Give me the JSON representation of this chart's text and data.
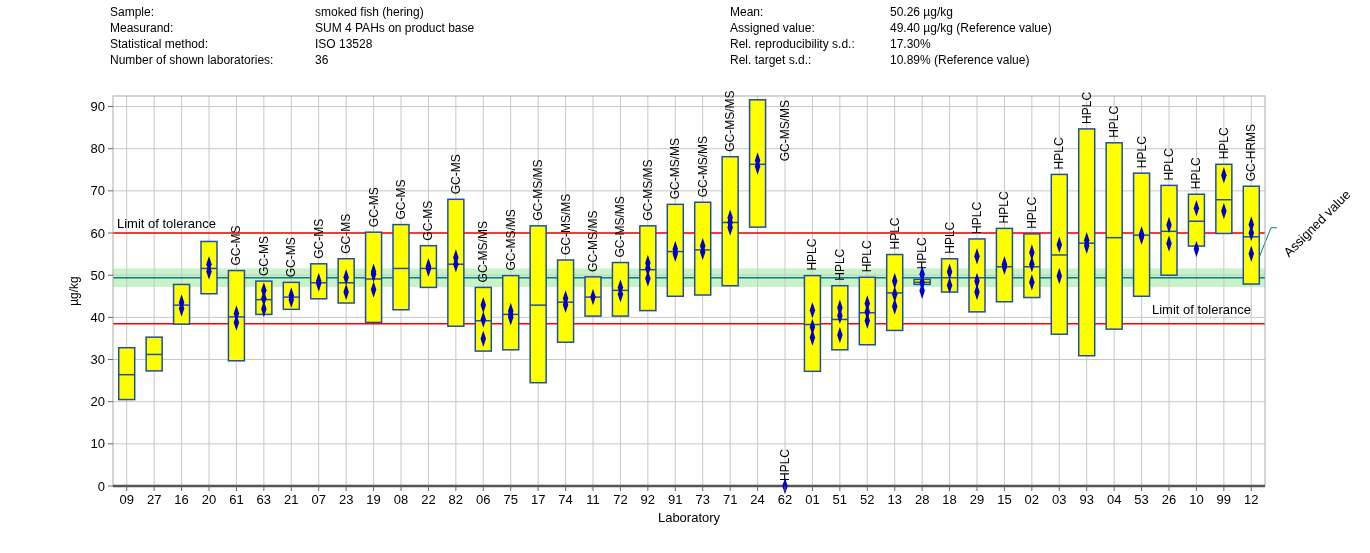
{
  "chart_data": {
    "type": "box",
    "xlabel": "Laboratory",
    "ylabel": "µg/kg",
    "categories": [
      "09",
      "27",
      "16",
      "20",
      "61",
      "63",
      "21",
      "07",
      "23",
      "19",
      "08",
      "22",
      "82",
      "06",
      "75",
      "17",
      "74",
      "11",
      "72",
      "92",
      "91",
      "73",
      "71",
      "24",
      "62",
      "01",
      "51",
      "52",
      "13",
      "28",
      "18",
      "29",
      "15",
      "02",
      "03",
      "93",
      "04",
      "53",
      "26",
      "10",
      "99",
      "12"
    ],
    "ylim": [
      0,
      92.5
    ],
    "yticks": [
      0,
      10,
      20,
      30,
      40,
      50,
      60,
      70,
      80,
      90
    ],
    "grid": true,
    "series": [
      {
        "type": "box",
        "color": "#ffff00",
        "boxes": [
          {
            "low": 20.5,
            "q1": 20.5,
            "median": 26.4,
            "q3": 32.8,
            "high": 32.8
          },
          {
            "low": 27.3,
            "q1": 27.3,
            "median": 31.2,
            "q3": 35.3,
            "high": 35.3
          },
          {
            "low": 38.4,
            "q1": 38.4,
            "median": 42.9,
            "q3": 47.8,
            "high": 47.8
          },
          {
            "low": 45.6,
            "q1": 45.6,
            "median": 51.6,
            "q3": 58.0,
            "high": 58.0
          },
          {
            "low": 29.7,
            "q1": 29.7,
            "median": 40.1,
            "q3": 51.1,
            "high": 51.1
          },
          {
            "low": 40.7,
            "q1": 40.7,
            "median": 44.2,
            "q3": 48.6,
            "high": 48.6
          },
          {
            "low": 41.9,
            "q1": 41.9,
            "median": 44.8,
            "q3": 48.3,
            "high": 48.3
          },
          {
            "low": 44.4,
            "q1": 44.4,
            "median": 48.2,
            "q3": 52.7,
            "high": 52.7
          },
          {
            "low": 43.4,
            "q1": 43.4,
            "median": 48.2,
            "q3": 53.9,
            "high": 53.9
          },
          {
            "low": 38.8,
            "q1": 38.8,
            "median": 49.1,
            "q3": 60.2,
            "high": 60.2
          },
          {
            "low": 41.8,
            "q1": 41.8,
            "median": 51.6,
            "q3": 62.0,
            "high": 62.0
          },
          {
            "low": 47.1,
            "q1": 47.1,
            "median": 51.6,
            "q3": 57.0,
            "high": 57.0
          },
          {
            "low": 37.9,
            "q1": 37.9,
            "median": 52.6,
            "q3": 68.0,
            "high": 68.0
          },
          {
            "low": 32.0,
            "q1": 32.0,
            "median": 39.2,
            "q3": 47.1,
            "high": 47.1
          },
          {
            "low": 32.3,
            "q1": 32.3,
            "median": 40.7,
            "q3": 49.9,
            "high": 49.9
          },
          {
            "low": 24.5,
            "q1": 24.5,
            "median": 42.9,
            "q3": 61.7,
            "high": 61.7
          },
          {
            "low": 34.1,
            "q1": 34.1,
            "median": 43.6,
            "q3": 53.6,
            "high": 53.6
          },
          {
            "low": 40.3,
            "q1": 40.3,
            "median": 44.8,
            "q3": 49.6,
            "high": 49.6
          },
          {
            "low": 40.3,
            "q1": 40.3,
            "median": 46.4,
            "q3": 53.0,
            "high": 53.0
          },
          {
            "low": 41.6,
            "q1": 41.6,
            "median": 51.3,
            "q3": 61.7,
            "high": 61.7
          },
          {
            "low": 45.0,
            "q1": 45.0,
            "median": 55.6,
            "q3": 66.8,
            "high": 66.8
          },
          {
            "low": 45.3,
            "q1": 45.3,
            "median": 56.0,
            "q3": 67.3,
            "high": 67.3
          },
          {
            "low": 47.5,
            "q1": 47.5,
            "median": 62.5,
            "q3": 78.1,
            "high": 78.1
          },
          {
            "low": 61.4,
            "q1": 61.4,
            "median": 76.3,
            "q3": 91.6,
            "high": 91.6
          },
          null,
          {
            "low": 27.2,
            "q1": 27.2,
            "median": 38.3,
            "q3": 49.9,
            "high": 49.9
          },
          {
            "low": 32.3,
            "q1": 32.3,
            "median": 39.5,
            "q3": 47.5,
            "high": 47.5
          },
          {
            "low": 33.5,
            "q1": 33.5,
            "median": 41.1,
            "q3": 49.5,
            "high": 49.5
          },
          {
            "low": 36.9,
            "q1": 36.9,
            "median": 45.8,
            "q3": 54.9,
            "high": 54.9
          },
          {
            "low": 47.8,
            "q1": 47.8,
            "median": 48.3,
            "q3": 49.0,
            "high": 49.0
          },
          {
            "low": 46.0,
            "q1": 46.0,
            "median": 49.4,
            "q3": 53.9,
            "high": 53.9
          },
          {
            "low": 41.3,
            "q1": 41.3,
            "median": 49.4,
            "q3": 58.6,
            "high": 58.6
          },
          {
            "low": 43.7,
            "q1": 43.7,
            "median": 52.0,
            "q3": 61.1,
            "high": 61.1
          },
          {
            "low": 44.7,
            "q1": 44.7,
            "median": 52.0,
            "q3": 59.8,
            "high": 59.8
          },
          {
            "low": 36.0,
            "q1": 36.0,
            "median": 54.8,
            "q3": 73.9,
            "high": 73.9
          },
          {
            "low": 30.9,
            "q1": 30.9,
            "median": 57.6,
            "q3": 84.7,
            "high": 84.7
          },
          {
            "low": 37.2,
            "q1": 37.2,
            "median": 58.9,
            "q3": 81.4,
            "high": 81.4
          },
          {
            "low": 45.0,
            "q1": 45.0,
            "median": 59.5,
            "q3": 74.2,
            "high": 74.2
          },
          {
            "low": 50.0,
            "q1": 50.0,
            "median": 60.4,
            "q3": 71.3,
            "high": 71.3
          },
          {
            "low": 56.9,
            "q1": 56.9,
            "median": 62.8,
            "q3": 69.2,
            "high": 69.2
          },
          {
            "low": 59.9,
            "q1": 59.9,
            "median": 67.9,
            "q3": 76.3,
            "high": 76.3
          },
          {
            "low": 47.9,
            "q1": 47.9,
            "median": 59.1,
            "q3": 71.1,
            "high": 71.1
          }
        ]
      },
      {
        "type": "scatter",
        "color": "#0000cc",
        "marker": "diamond",
        "x": [
          "16",
          "16",
          "20",
          "20",
          "61",
          "61",
          "63",
          "63",
          "63",
          "21",
          "21",
          "07",
          "07",
          "23",
          "23",
          "19",
          "19",
          "19",
          "22",
          "22",
          "82",
          "82",
          "06",
          "06",
          "06",
          "75",
          "75",
          "75",
          "74",
          "74",
          "11",
          "72",
          "72",
          "92",
          "92",
          "92",
          "91",
          "91",
          "73",
          "73",
          "71",
          "71",
          "71",
          "24",
          "24",
          "62",
          "01",
          "01",
          "01",
          "51",
          "51",
          "51",
          "52",
          "52",
          "52",
          "13",
          "13",
          "13",
          "28",
          "28",
          "28",
          "18",
          "18",
          "29",
          "29",
          "29",
          "15",
          "15",
          "02",
          "02",
          "02",
          "03",
          "03",
          "93",
          "93",
          "53",
          "53",
          "26",
          "26",
          "10",
          "10",
          "99",
          "99",
          "12",
          "12",
          "12"
        ],
        "values": [
          43.5,
          42.1,
          52.6,
          50.9,
          40.9,
          38.8,
          46.4,
          44.5,
          42.0,
          45.2,
          44.2,
          48.6,
          48.0,
          49.5,
          46.0,
          50.8,
          50.2,
          46.6,
          52.1,
          51.5,
          54.2,
          52.6,
          42.9,
          39.5,
          34.9,
          41.5,
          40.7,
          40.0,
          44.5,
          43.0,
          44.8,
          47.1,
          45.5,
          52.9,
          51.6,
          49.2,
          56.2,
          55.1,
          56.9,
          55.5,
          63.6,
          62.5,
          61.3,
          77.2,
          75.8,
          0,
          41.7,
          37.7,
          35.2,
          42.3,
          40.4,
          35.8,
          43.3,
          41.3,
          39.2,
          48.6,
          45.5,
          42.6,
          50.2,
          48.2,
          46.3,
          50.8,
          47.6,
          54.5,
          48.6,
          46.0,
          52.6,
          52.0,
          55.4,
          52.6,
          48.3,
          57.2,
          49.8,
          58.3,
          57.0,
          59.7,
          59.1,
          61.9,
          57.5,
          65.9,
          56.2,
          73.7,
          65.2,
          62.0,
          60.0,
          55.1
        ]
      }
    ],
    "ref_lines": [
      {
        "axis": "y",
        "value": 60.0,
        "label": "Limit of tolerance",
        "color": "#ff0000"
      },
      {
        "axis": "y",
        "value": 38.5,
        "label": "Limit of tolerance",
        "color": "#ff0000"
      },
      {
        "axis": "y",
        "value": 49.4,
        "label": "Assigned value",
        "color": "#008080"
      }
    ],
    "bands": [
      {
        "axis": "y",
        "from": 47.2,
        "to": 51.6,
        "color": "#c8f2c8"
      }
    ],
    "annotations": [
      "Sample:",
      "Measurand:",
      "Statistical method:",
      "Number of shown laboratories:",
      "smoked fish (hering)",
      "SUM 4 PAHs on product base",
      "ISO 13528",
      "36",
      "Mean:",
      "Assigned value:",
      "Rel. reproducibility s.d.:",
      "Rel. target s.d.:",
      "50.26 µg/kg",
      "49.40 µg/kg (Reference value)",
      "17.30%",
      "10.89% (Reference value)",
      {
        "text": "GC-MS",
        "x": "61",
        "y": 51.1
      },
      {
        "text": "GC-MS",
        "x": "63",
        "y": 48.6
      },
      {
        "text": "GC-MS",
        "x": "21",
        "y": 48.3
      },
      {
        "text": "GC-MS",
        "x": "07",
        "y": 52.7
      },
      {
        "text": "GC-MS",
        "x": "23",
        "y": 53.9
      },
      {
        "text": "GC-MS",
        "x": "19",
        "y": 60.2
      },
      {
        "text": "GC-MS",
        "x": "08",
        "y": 62.0
      },
      {
        "text": "GC-MS",
        "x": "22",
        "y": 57.0
      },
      {
        "text": "GC-MS",
        "x": "82",
        "y": 68.0
      },
      {
        "text": "GC-MS/MS",
        "x": "06",
        "y": 47.1
      },
      {
        "text": "GC-MS/MS",
        "x": "75",
        "y": 49.9
      },
      {
        "text": "GC-MS/MS",
        "x": "17",
        "y": 61.7
      },
      {
        "text": "GC-MS/MS",
        "x": "74",
        "y": 53.6
      },
      {
        "text": "GC-MS/MS",
        "x": "11",
        "y": 49.6
      },
      {
        "text": "GC-MS/MS",
        "x": "72",
        "y": 53.0
      },
      {
        "text": "GC-MS/MS",
        "x": "92",
        "y": 61.7
      },
      {
        "text": "GC-MS/MS",
        "x": "91",
        "y": 66.8
      },
      {
        "text": "GC-MS/MS",
        "x": "73",
        "y": 67.3
      },
      {
        "text": "GC-MS/MS",
        "x": "71",
        "y": 78.1
      },
      {
        "text": "GC-MS/MS",
        "x": "24",
        "y": 91.6
      },
      {
        "text": "HPLC",
        "x": "62",
        "y": 0
      },
      {
        "text": "HPLC",
        "x": "01",
        "y": 49.9
      },
      {
        "text": "HPLC",
        "x": "51",
        "y": 47.5
      },
      {
        "text": "HPLC",
        "x": "52",
        "y": 49.5
      },
      {
        "text": "HPLC",
        "x": "13",
        "y": 54.9
      },
      {
        "text": "HPLC",
        "x": "28",
        "y": 50.2
      },
      {
        "text": "HPLC",
        "x": "18",
        "y": 53.9
      },
      {
        "text": "HPLC",
        "x": "29",
        "y": 58.6
      },
      {
        "text": "HPLC",
        "x": "15",
        "y": 61.1
      },
      {
        "text": "HPLC",
        "x": "02",
        "y": 59.8
      },
      {
        "text": "HPLC",
        "x": "03",
        "y": 73.9
      },
      {
        "text": "HPLC",
        "x": "93",
        "y": 84.7
      },
      {
        "text": "HPLC",
        "x": "04",
        "y": 81.4
      },
      {
        "text": "HPLC",
        "x": "53",
        "y": 74.2
      },
      {
        "text": "HPLC",
        "x": "26",
        "y": 71.3
      },
      {
        "text": "HPLC",
        "x": "10",
        "y": 69.2
      },
      {
        "text": "HPLC",
        "x": "99",
        "y": 76.3
      },
      {
        "text": "GC-HRMS",
        "x": "12",
        "y": 71.1
      }
    ]
  }
}
